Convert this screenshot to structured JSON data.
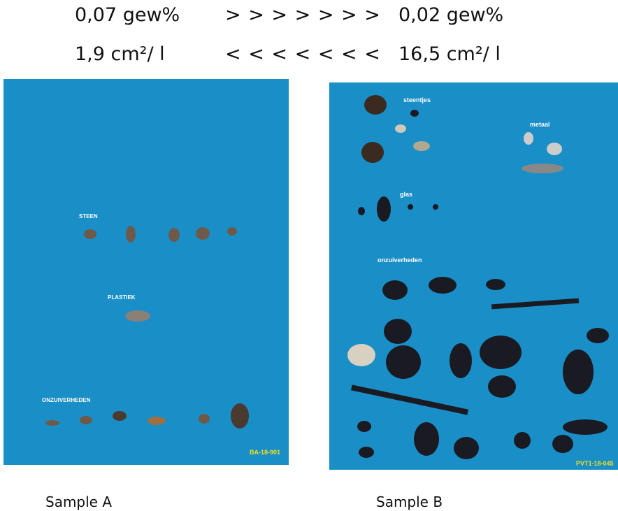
{
  "comparison": {
    "rows": [
      [
        "0,07 gew%",
        "> > > > > > >",
        "0,02 gew%"
      ],
      [
        "1,9 cm²/ l",
        "< < < < < < <",
        "16,5 cm²/ l"
      ]
    ]
  },
  "samples": [
    {
      "caption": "Sample A",
      "labels": [
        "STEEN",
        "PLASTIEK",
        "ONZUIVERHEDEN"
      ],
      "code": "BA-18-901"
    },
    {
      "caption": "Sample B",
      "labels": [
        "steentjes",
        "metaal",
        "glas",
        "onzuiverheden"
      ],
      "code": "PVT1-18-045"
    }
  ]
}
